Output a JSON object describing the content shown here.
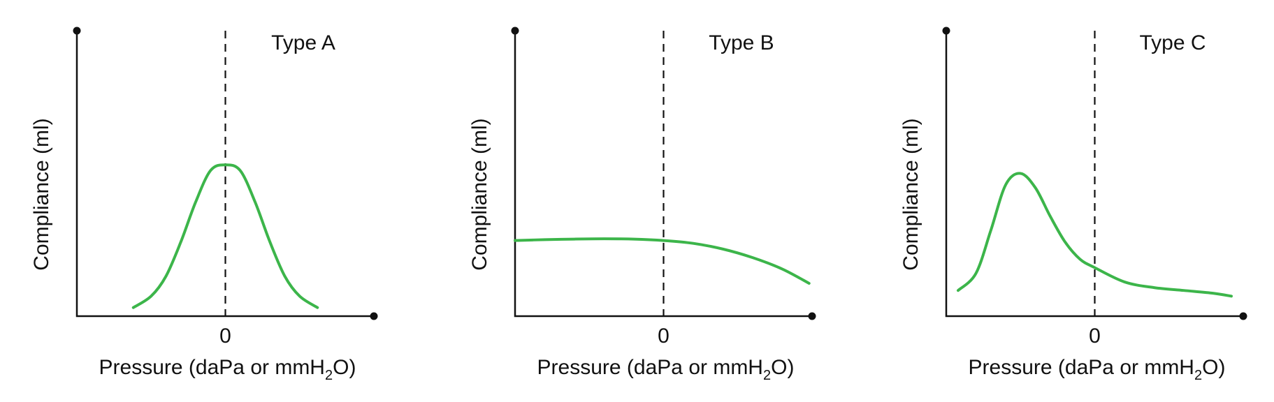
{
  "chart_data": [
    {
      "type": "line",
      "title": "Type A",
      "xlabel_parts": [
        "Pressure (daPa or mmH",
        "2",
        "O)"
      ],
      "ylabel": "Compliance (ml)",
      "x_ticks": [
        {
          "value": 0,
          "label": "0"
        }
      ],
      "xlim": [
        -1,
        1
      ],
      "ylim": [
        0,
        1
      ],
      "reference_line": {
        "x": 0,
        "style": "dashed"
      },
      "grid": false,
      "series": [
        {
          "color": "#3cb54a",
          "x": [
            -0.62,
            -0.5,
            -0.4,
            -0.3,
            -0.2,
            -0.1,
            0.0,
            0.1,
            0.2,
            0.3,
            0.4,
            0.5,
            0.62
          ],
          "y": [
            0.03,
            0.07,
            0.14,
            0.26,
            0.4,
            0.51,
            0.53,
            0.51,
            0.4,
            0.26,
            0.14,
            0.07,
            0.03
          ]
        }
      ]
    },
    {
      "type": "line",
      "title": "Type B",
      "xlabel_parts": [
        "Pressure (daPa or mmH",
        "2",
        "O)"
      ],
      "ylabel": "Compliance (ml)",
      "x_ticks": [
        {
          "value": 0,
          "label": "0"
        }
      ],
      "xlim": [
        -1,
        1
      ],
      "ylim": [
        0,
        1
      ],
      "reference_line": {
        "x": 0,
        "style": "dashed"
      },
      "grid": false,
      "series": [
        {
          "color": "#3cb54a",
          "x": [
            -1.0,
            -0.8,
            -0.6,
            -0.4,
            -0.2,
            0.0,
            0.2,
            0.4,
            0.6,
            0.8,
            0.98
          ],
          "y": [
            0.265,
            0.268,
            0.27,
            0.271,
            0.27,
            0.265,
            0.255,
            0.235,
            0.205,
            0.165,
            0.115
          ]
        }
      ]
    },
    {
      "type": "line",
      "title": "Type C",
      "xlabel_parts": [
        "Pressure (daPa or mmH",
        "2",
        "O)"
      ],
      "ylabel": "Compliance (ml)",
      "x_ticks": [
        {
          "value": 0,
          "label": "0"
        }
      ],
      "xlim": [
        -1,
        1
      ],
      "ylim": [
        0,
        1
      ],
      "reference_line": {
        "x": 0,
        "style": "dashed"
      },
      "grid": false,
      "series": [
        {
          "color": "#3cb54a",
          "x": [
            -0.92,
            -0.8,
            -0.7,
            -0.6,
            -0.5,
            -0.4,
            -0.3,
            -0.2,
            -0.1,
            0.0,
            0.2,
            0.4,
            0.6,
            0.8,
            0.92
          ],
          "y": [
            0.09,
            0.15,
            0.3,
            0.46,
            0.5,
            0.45,
            0.35,
            0.26,
            0.2,
            0.17,
            0.12,
            0.1,
            0.09,
            0.08,
            0.07
          ]
        }
      ]
    }
  ]
}
